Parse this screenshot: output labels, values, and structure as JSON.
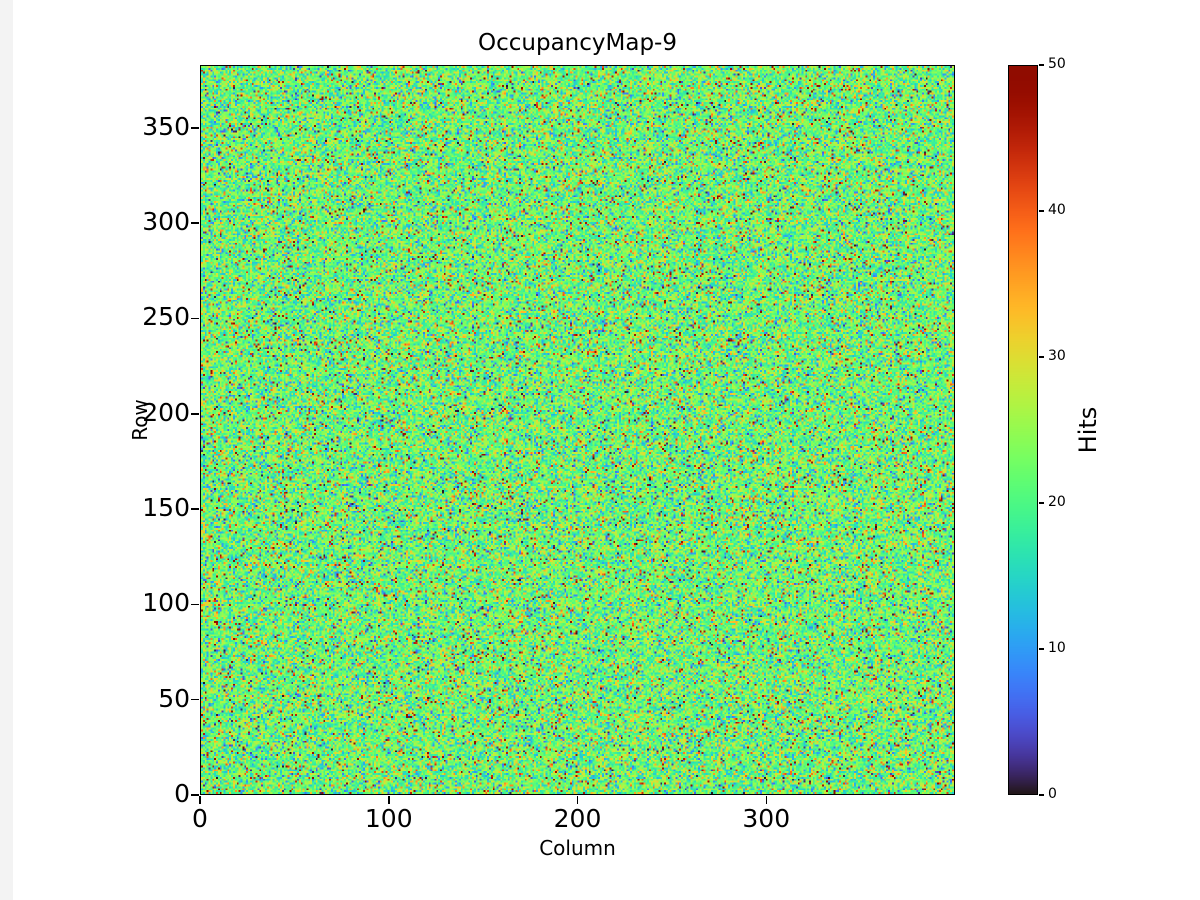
{
  "figure": {
    "background": "#ffffff",
    "text_color": "#000000"
  },
  "chart_data": {
    "type": "heatmap",
    "title": "OccupancyMap-9",
    "xlabel": "Column",
    "ylabel": "Row",
    "colorbar_label": "Hits",
    "colormap": "turbo",
    "vmin": 0,
    "vmax": 50,
    "grid_cols": 400,
    "grid_rows": 383,
    "x_ticks": [
      0,
      100,
      200,
      300
    ],
    "y_ticks": [
      0,
      50,
      100,
      150,
      200,
      250,
      300,
      350
    ],
    "colorbar_ticks": [
      0,
      10,
      20,
      30,
      40,
      50
    ],
    "data_description": "Dense random per-pixel hit counts: mostly green/yellow midrange values around the mean with scattered red (high) and blue/dark (low) outlier pixels across the full 0-50 color range.",
    "data_mean": 22,
    "data_stddev": 5.5,
    "outlier_fraction": 0.15,
    "seed": 9
  }
}
